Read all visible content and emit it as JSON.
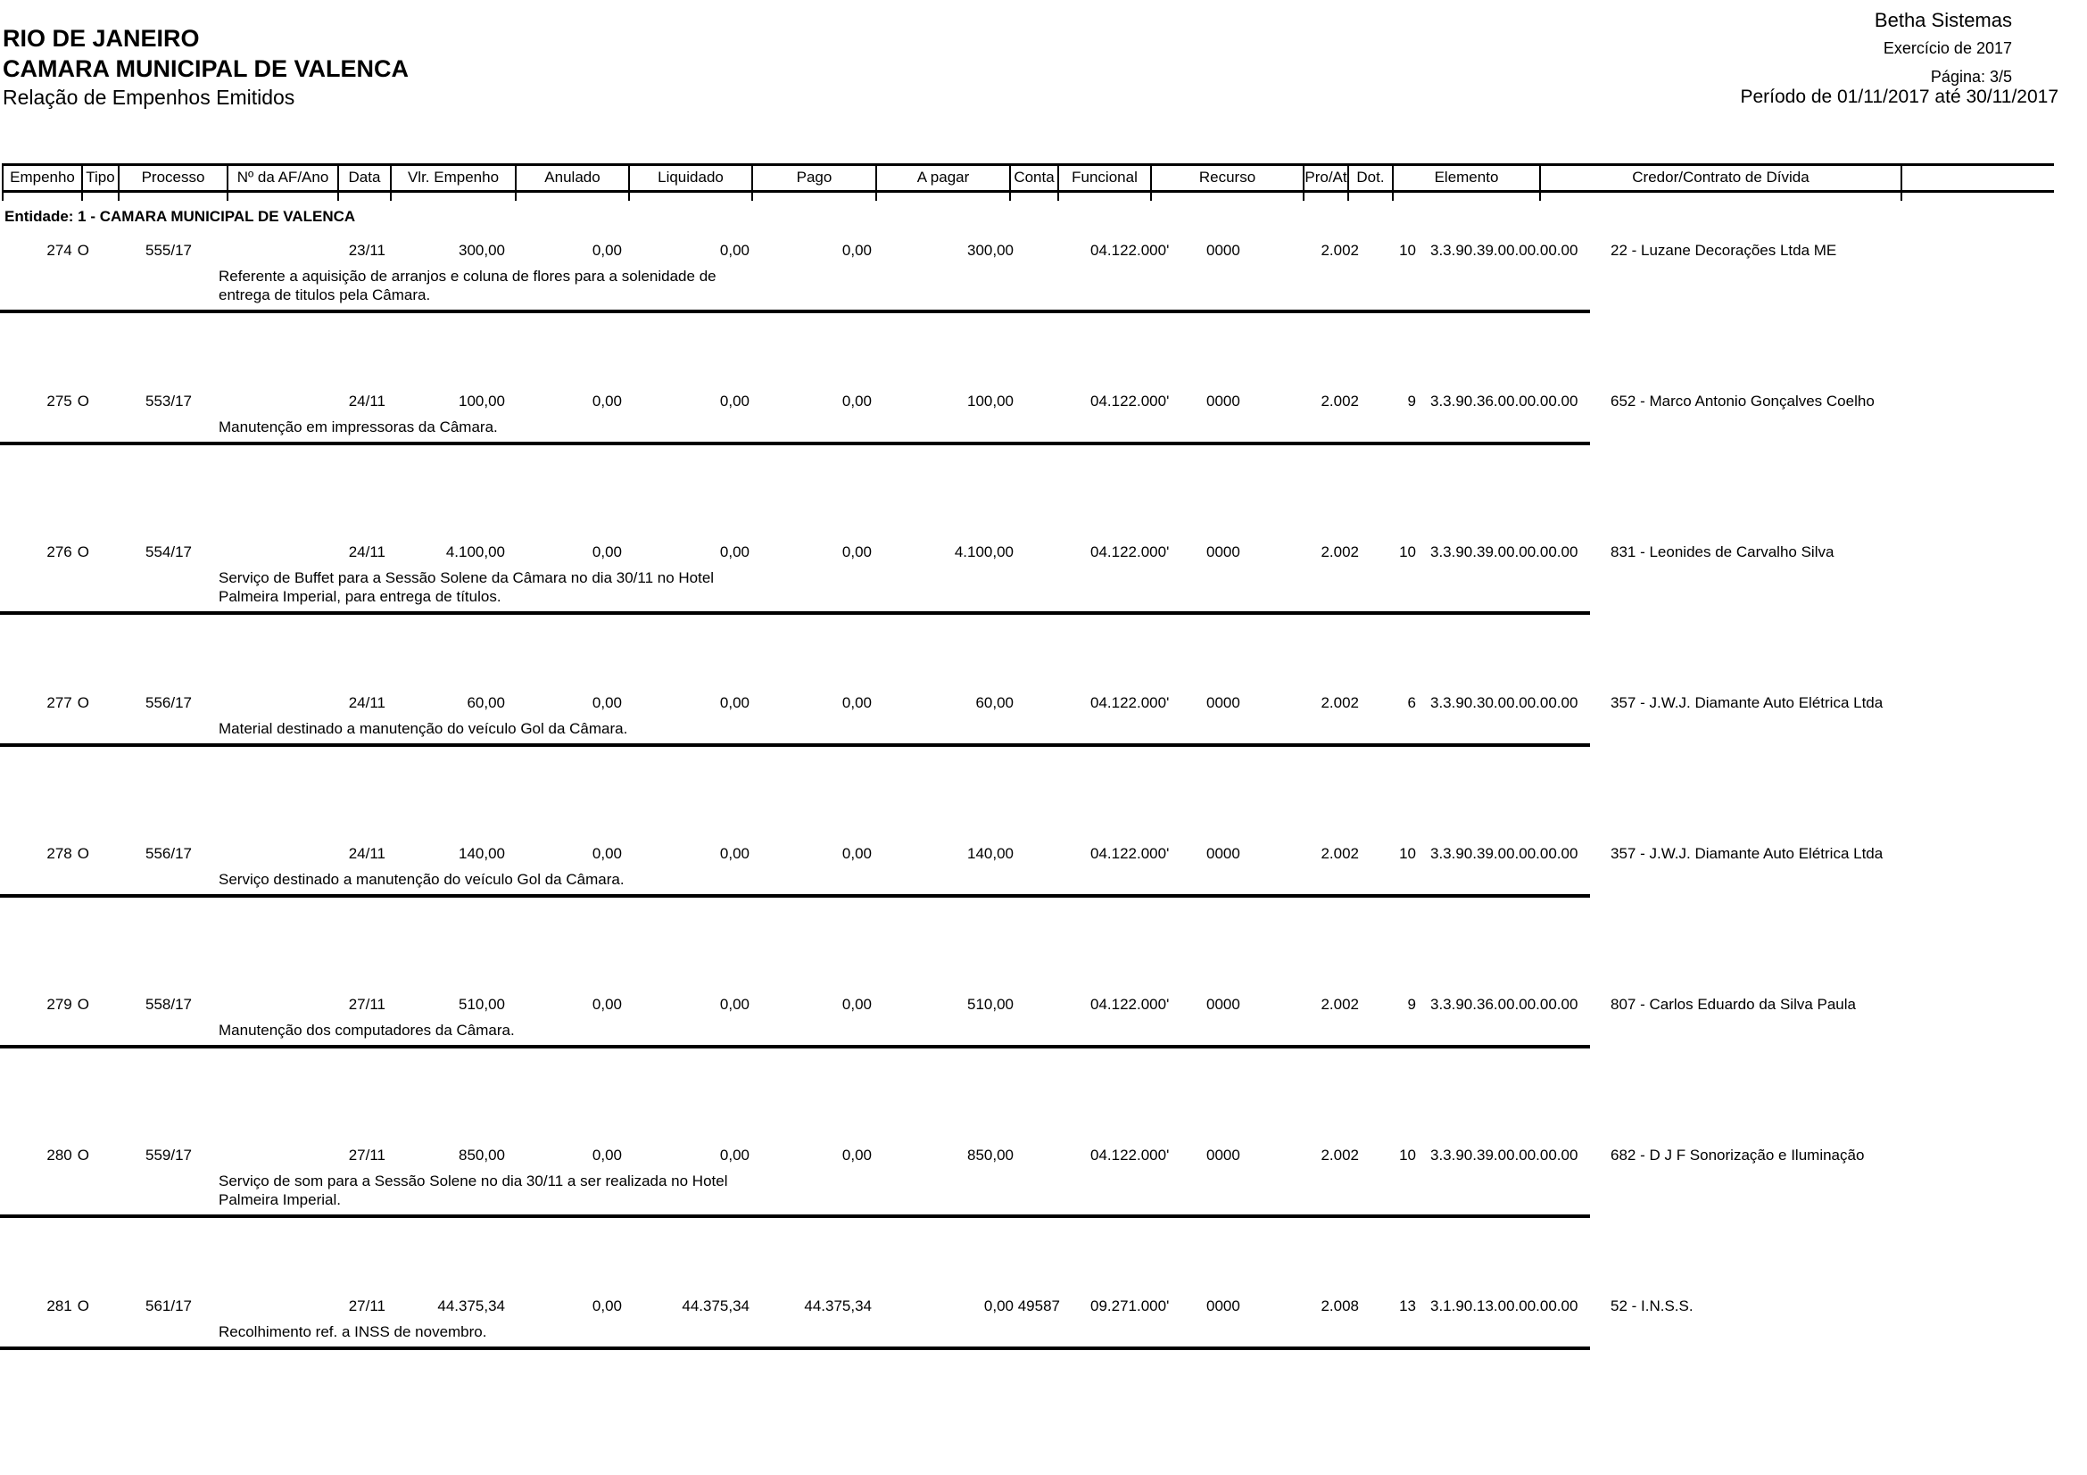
{
  "header": {
    "company": "Betha Sistemas",
    "state": "RIO DE JANEIRO",
    "entity_name": "CAMARA MUNICIPAL DE VALENCA",
    "report_title": "Relação de Empenhos Emitidos",
    "exercise": "Exercício de 2017",
    "page": "Página: 3/5",
    "period": "Período de 01/11/2017 até 30/11/2017"
  },
  "table": {
    "columns": [
      "Empenho",
      "Tipo",
      "Processo",
      "Nº da AF/Ano",
      "Data",
      "Vlr. Empenho",
      "Anulado",
      "Liquidado",
      "Pago",
      "A pagar",
      "Conta",
      "Funcional",
      "Recurso",
      "Pro/At",
      "Dot.",
      "Elemento",
      "Credor/Contrato de Dívida"
    ],
    "entity_header": "Entidade: 1 - CAMARA MUNICIPAL DE VALENCA",
    "rows": [
      {
        "empenho": "274",
        "tipo": "O",
        "processo": "555/17",
        "data": "23/11",
        "vlr_empenho": "300,00",
        "anulado": "0,00",
        "liquidado": "0,00",
        "pago": "0,00",
        "a_pagar": "300,00",
        "conta": "",
        "funcional": "04.122.000'",
        "recurso": "0000",
        "pro_at": "2.002",
        "dot": "10",
        "elemento": "3.3.90.39.00.00.00.00",
        "credor": "22 - Luzane Decorações Ltda ME",
        "descricao": "Referente a aquisição de arranjos e coluna de flores para a solenidade de entrega de titulos pela Câmara."
      },
      {
        "empenho": "275",
        "tipo": "O",
        "processo": "553/17",
        "data": "24/11",
        "vlr_empenho": "100,00",
        "anulado": "0,00",
        "liquidado": "0,00",
        "pago": "0,00",
        "a_pagar": "100,00",
        "conta": "",
        "funcional": "04.122.000'",
        "recurso": "0000",
        "pro_at": "2.002",
        "dot": "9",
        "elemento": "3.3.90.36.00.00.00.00",
        "credor": "652 - Marco Antonio Gonçalves Coelho",
        "descricao": "Manutenção em impressoras da Câmara."
      },
      {
        "empenho": "276",
        "tipo": "O",
        "processo": "554/17",
        "data": "24/11",
        "vlr_empenho": "4.100,00",
        "anulado": "0,00",
        "liquidado": "0,00",
        "pago": "0,00",
        "a_pagar": "4.100,00",
        "conta": "",
        "funcional": "04.122.000'",
        "recurso": "0000",
        "pro_at": "2.002",
        "dot": "10",
        "elemento": "3.3.90.39.00.00.00.00",
        "credor": "831 - Leonides de Carvalho Silva",
        "descricao": "Serviço de Buffet para a Sessão Solene da Câmara no dia 30/11 no Hotel Palmeira Imperial, para entrega de títulos."
      },
      {
        "empenho": "277",
        "tipo": "O",
        "processo": "556/17",
        "data": "24/11",
        "vlr_empenho": "60,00",
        "anulado": "0,00",
        "liquidado": "0,00",
        "pago": "0,00",
        "a_pagar": "60,00",
        "conta": "",
        "funcional": "04.122.000'",
        "recurso": "0000",
        "pro_at": "2.002",
        "dot": "6",
        "elemento": "3.3.90.30.00.00.00.00",
        "credor": "357 - J.W.J. Diamante Auto Elétrica Ltda",
        "descricao": "Material destinado a manutenção do veículo Gol da Câmara."
      },
      {
        "empenho": "278",
        "tipo": "O",
        "processo": "556/17",
        "data": "24/11",
        "vlr_empenho": "140,00",
        "anulado": "0,00",
        "liquidado": "0,00",
        "pago": "0,00",
        "a_pagar": "140,00",
        "conta": "",
        "funcional": "04.122.000'",
        "recurso": "0000",
        "pro_at": "2.002",
        "dot": "10",
        "elemento": "3.3.90.39.00.00.00.00",
        "credor": "357 - J.W.J. Diamante Auto Elétrica Ltda",
        "descricao": "Serviço destinado a manutenção do veículo Gol da Câmara."
      },
      {
        "empenho": "279",
        "tipo": "O",
        "processo": "558/17",
        "data": "27/11",
        "vlr_empenho": "510,00",
        "anulado": "0,00",
        "liquidado": "0,00",
        "pago": "0,00",
        "a_pagar": "510,00",
        "conta": "",
        "funcional": "04.122.000'",
        "recurso": "0000",
        "pro_at": "2.002",
        "dot": "9",
        "elemento": "3.3.90.36.00.00.00.00",
        "credor": "807 - Carlos Eduardo da Silva Paula",
        "descricao": "Manutenção dos computadores da Câmara."
      },
      {
        "empenho": "280",
        "tipo": "O",
        "processo": "559/17",
        "data": "27/11",
        "vlr_empenho": "850,00",
        "anulado": "0,00",
        "liquidado": "0,00",
        "pago": "0,00",
        "a_pagar": "850,00",
        "conta": "",
        "funcional": "04.122.000'",
        "recurso": "0000",
        "pro_at": "2.002",
        "dot": "10",
        "elemento": "3.3.90.39.00.00.00.00",
        "credor": "682 - D J F Sonorização e Iluminação",
        "descricao": "Serviço de som para a Sessão Solene no dia 30/11 a ser realizada no Hotel Palmeira Imperial."
      },
      {
        "empenho": "281",
        "tipo": "O",
        "processo": "561/17",
        "data": "27/11",
        "vlr_empenho": "44.375,34",
        "anulado": "0,00",
        "liquidado": "44.375,34",
        "pago": "44.375,34",
        "a_pagar": "0,00",
        "conta": "49587",
        "funcional": "09.271.000'",
        "recurso": "0000",
        "pro_at": "2.008",
        "dot": "13",
        "elemento": "3.1.90.13.00.00.00.00",
        "credor": "52 - I.N.S.S.",
        "descricao": "Recolhimento ref. a INSS de novembro."
      }
    ]
  }
}
